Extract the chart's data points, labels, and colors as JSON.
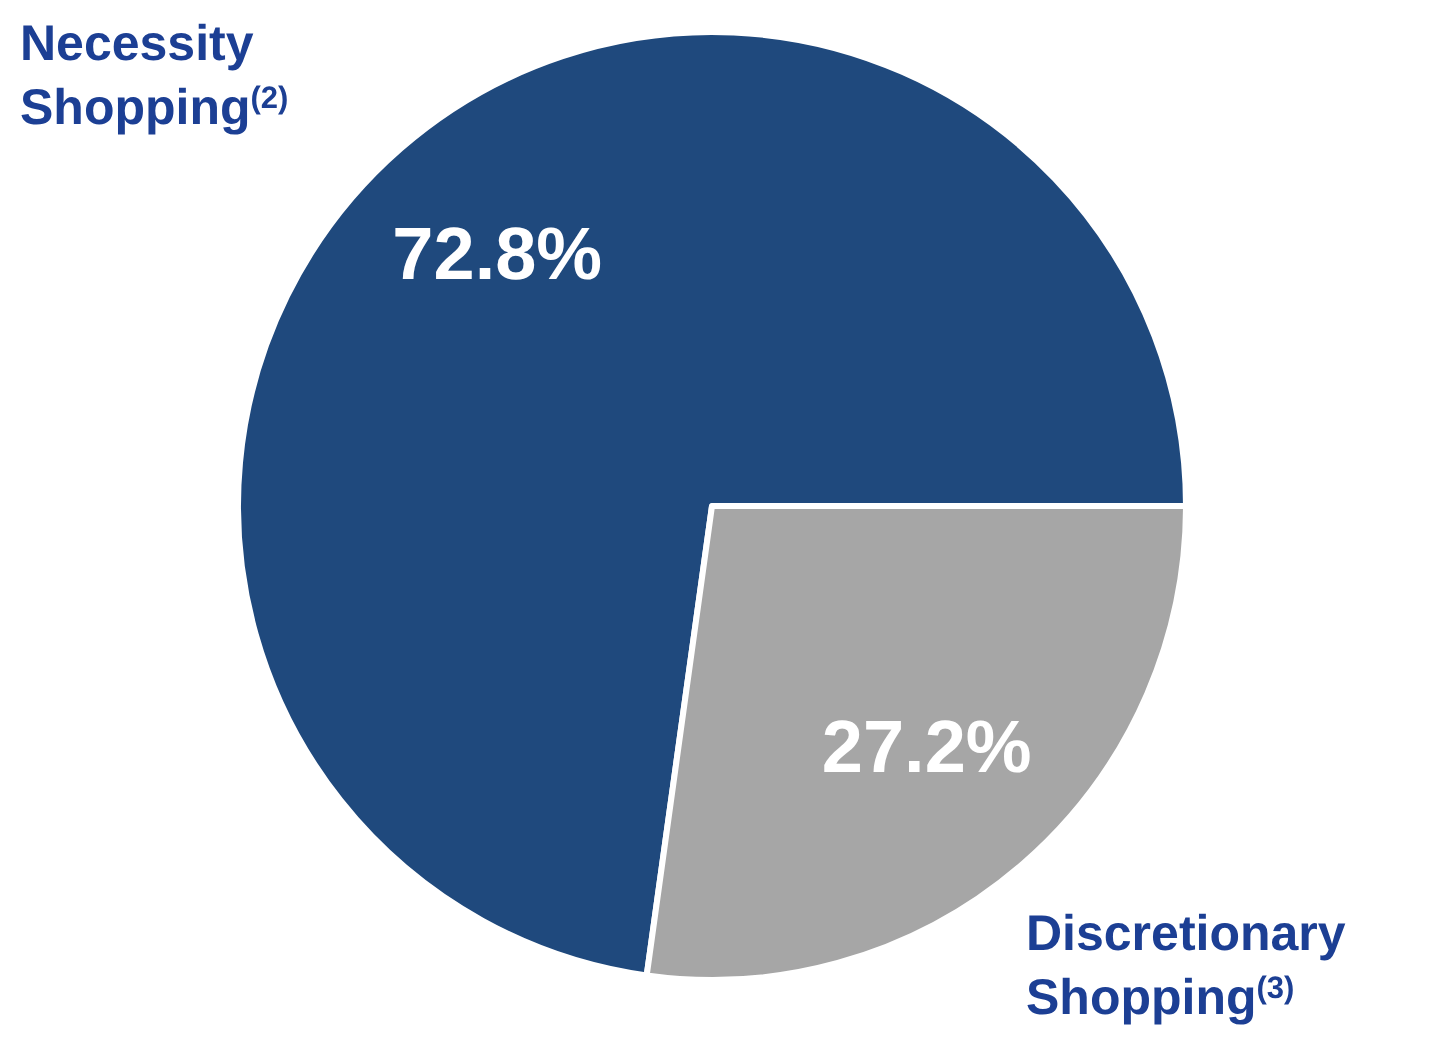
{
  "chart_data": {
    "type": "pie",
    "categories": [
      "Necessity Shopping$^{(2)}$",
      "Discretionary Shopping$^{(3)}$"
    ],
    "values": [
      72.8,
      27.2
    ],
    "colors": [
      "#1f497d",
      "#a6a6a6"
    ],
    "value_labels": [
      "72.8%",
      "27.2%"
    ]
  }
}
